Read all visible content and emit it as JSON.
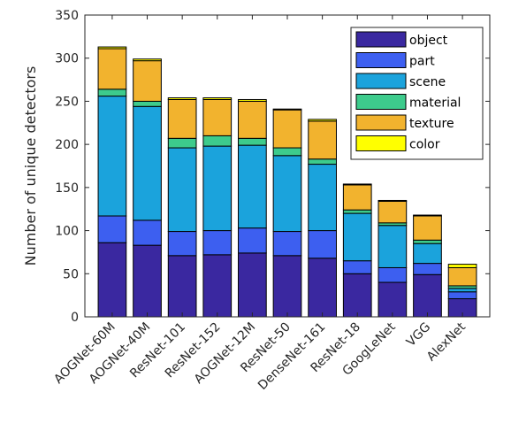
{
  "chart_data": {
    "type": "bar",
    "stacked": true,
    "title": "",
    "xlabel": "",
    "ylabel": "Number of unique detectors",
    "ylim": [
      0,
      350
    ],
    "yticks": [
      0,
      50,
      100,
      150,
      200,
      250,
      300,
      350
    ],
    "grid": false,
    "legend_position": "top-right",
    "categories": [
      "AOGNet-60M",
      "AOGNet-40M",
      "ResNet-101",
      "ResNet-152",
      "AOGNet-12M",
      "ResNet-50",
      "DenseNet-161",
      "ResNet-18",
      "GoogLeNet",
      "VGG",
      "AlexNet"
    ],
    "series": [
      {
        "name": "object",
        "color": "#3a28a0",
        "values": [
          86,
          83,
          71,
          72,
          74,
          71,
          68,
          50,
          40,
          49,
          21
        ]
      },
      {
        "name": "part",
        "color": "#3d5ff0",
        "values": [
          31,
          29,
          28,
          28,
          29,
          28,
          32,
          15,
          17,
          13,
          8
        ]
      },
      {
        "name": "scene",
        "color": "#1ba3dc",
        "values": [
          139,
          132,
          97,
          98,
          96,
          88,
          77,
          55,
          49,
          23,
          4
        ]
      },
      {
        "name": "material",
        "color": "#3dcb8c",
        "values": [
          8,
          6,
          11,
          12,
          8,
          9,
          6,
          4,
          3,
          4,
          3
        ]
      },
      {
        "name": "texture",
        "color": "#f2b32e",
        "values": [
          47,
          47,
          45,
          42,
          43,
          44,
          44,
          29,
          25,
          28,
          21
        ]
      },
      {
        "name": "color",
        "color": "#ffff00",
        "values": [
          2,
          2,
          2,
          2,
          2,
          1,
          2,
          1,
          1,
          1,
          4
        ]
      }
    ]
  }
}
